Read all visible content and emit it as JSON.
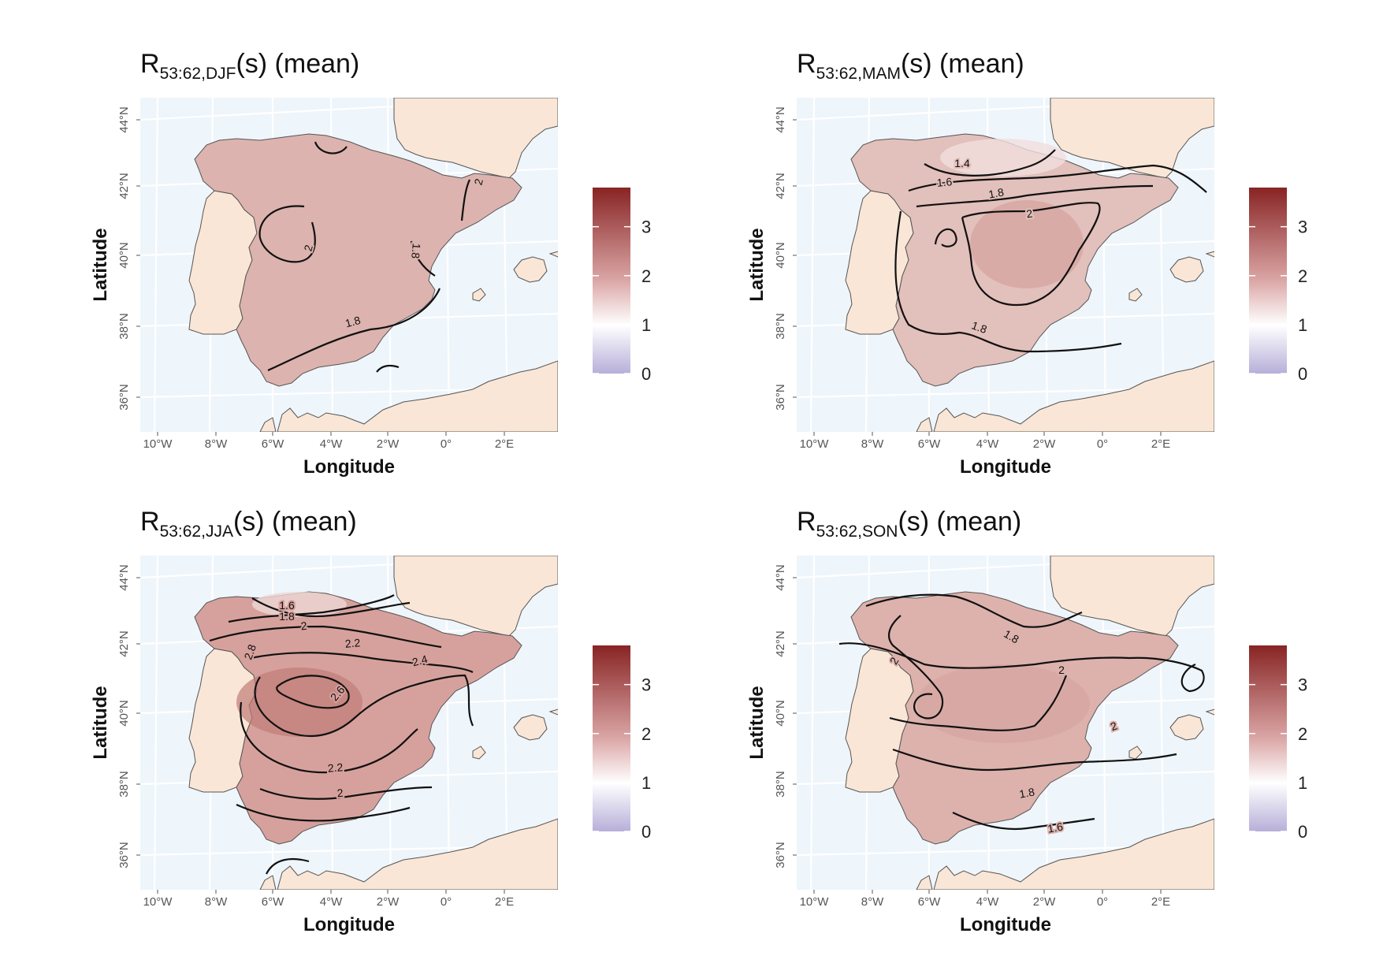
{
  "panels": [
    {
      "title_main": "R",
      "title_sub": "53:62,DJF",
      "title_tail": "(s) (mean)",
      "contour_labels": [
        "2",
        "2",
        "1.8",
        "1.8"
      ]
    },
    {
      "title_main": "R",
      "title_sub": "53:62,MAM",
      "title_tail": "(s) (mean)",
      "contour_labels": [
        "1.4",
        "1.6",
        "1.8",
        "2",
        "1.8"
      ]
    },
    {
      "title_main": "R",
      "title_sub": "53:62,JJA",
      "title_tail": "(s) (mean)",
      "contour_labels": [
        "1.6",
        "1.8",
        "2",
        "2.2",
        "2.4",
        "2.8",
        "2.6",
        "2.2",
        "2"
      ]
    },
    {
      "title_main": "R",
      "title_sub": "53:62,SON",
      "title_tail": "(s) (mean)",
      "contour_labels": [
        "1.8",
        "2",
        "2",
        "2",
        "1.8",
        "1.6"
      ]
    }
  ],
  "axes": {
    "xlabel": "Longitude",
    "ylabel": "Latitude",
    "x_ticks": [
      "10°W",
      "8°W",
      "6°W",
      "4°W",
      "2°W",
      "0°",
      "2°E"
    ],
    "y_ticks": [
      "36°N",
      "38°N",
      "40°N",
      "42°N",
      "44°N"
    ]
  },
  "legend": {
    "ticks": [
      "3",
      "2",
      "1",
      "0"
    ],
    "range": [
      0,
      3.8
    ]
  },
  "colors": {
    "sea": "#eef5fb",
    "land": "#f9e6d6",
    "field_mid": "#d9a9a4",
    "field_high": "#8b2a2a",
    "field_low": "#b8b0d8",
    "graticule": "#ffffff"
  }
}
